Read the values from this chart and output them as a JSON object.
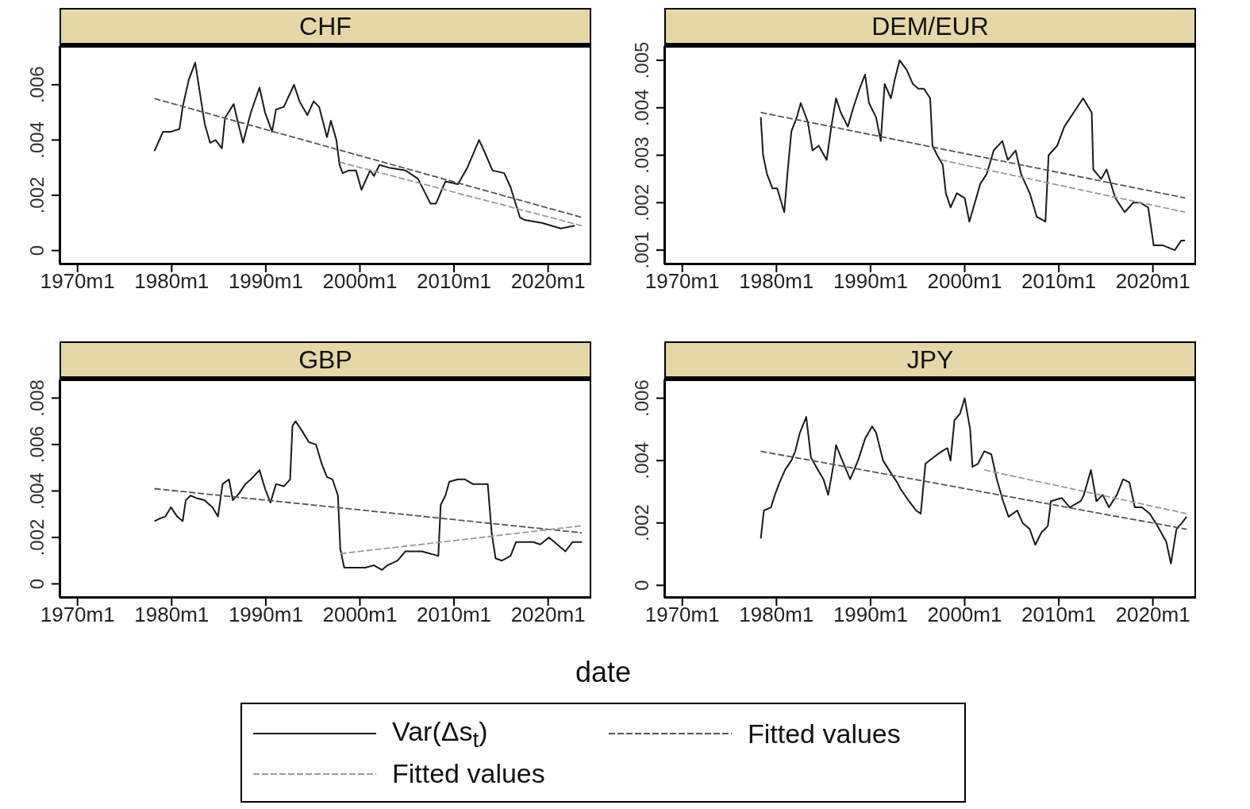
{
  "chart_data": [
    {
      "type": "line",
      "title": "CHF",
      "legend": "bottom",
      "marker": "none",
      "xlim": [
        "1968-02",
        "2024-08"
      ],
      "ylim": [
        -0.0005,
        0.0074
      ],
      "xticks": [
        {
          "value": "1970-01",
          "label": "1970m1"
        },
        {
          "value": "1980-01",
          "label": "1980m1"
        },
        {
          "value": "1990-01",
          "label": "1990m1"
        },
        {
          "value": "2000-01",
          "label": "2000m1"
        },
        {
          "value": "2010-01",
          "label": "2010m1"
        },
        {
          "value": "2020-01",
          "label": "2020m1"
        }
      ],
      "yticks": [
        {
          "value": 0,
          "label": "0"
        },
        {
          "value": 0.002,
          "label": ".002"
        },
        {
          "value": 0.004,
          "label": ".004"
        },
        {
          "value": 0.006,
          "label": ".006"
        }
      ],
      "series": [
        {
          "name": "Var(Δs$_{t}$)",
          "color": "#1a1a1a",
          "line_style": "solid",
          "x": [
            "1978-03",
            "1979-02",
            "1979-12",
            "1980-11",
            "1981-03",
            "1981-11",
            "1982-07",
            "1983-01",
            "1983-07",
            "1984-02",
            "1984-09",
            "1985-05",
            "1985-09",
            "1986-08",
            "1987-01",
            "1987-08",
            "1988-06",
            "1989-05",
            "1989-12",
            "1990-09",
            "1991-02",
            "1991-12",
            "1993-01",
            "1993-08",
            "1994-06",
            "1995-02",
            "1995-09",
            "1996-07",
            "1996-12",
            "1997-07",
            "1997-11",
            "1998-03",
            "1998-11",
            "1999-08",
            "2000-03",
            "2001-02",
            "2001-07",
            "2002-02",
            "2003-02",
            "2004-11",
            "2006-03",
            "2007-07",
            "2008-02",
            "2009-02",
            "2010-06",
            "2011-06",
            "2012-09",
            "2013-05",
            "2014-02",
            "2015-05",
            "2016-01",
            "2017-01",
            "2017-08",
            "2019-05",
            "2021-05",
            "2022-11"
          ],
          "values": [
            0.0036,
            0.0043,
            0.0043,
            0.0044,
            0.0052,
            0.0062,
            0.0068,
            0.0057,
            0.0046,
            0.0039,
            0.004,
            0.0037,
            0.0048,
            0.0053,
            0.0047,
            0.0039,
            0.005,
            0.0059,
            0.005,
            0.0043,
            0.0051,
            0.0052,
            0.006,
            0.0054,
            0.0049,
            0.0054,
            0.0052,
            0.0041,
            0.0047,
            0.004,
            0.0031,
            0.0028,
            0.0029,
            0.0029,
            0.0022,
            0.0029,
            0.0027,
            0.0031,
            0.003,
            0.0029,
            0.0026,
            0.0017,
            0.0017,
            0.0025,
            0.0024,
            0.003,
            0.004,
            0.0035,
            0.0029,
            0.0028,
            0.0023,
            0.0012,
            0.0011,
            0.001,
            0.0008,
            0.0009
          ]
        },
        {
          "name": "Fitted values",
          "color": "#555555",
          "line_style": "dashed",
          "x": [
            "1978-03",
            "2023-08"
          ],
          "values": [
            0.0055,
            0.0012
          ]
        },
        {
          "name": "Fitted values",
          "color": "#9a9a9a",
          "line_style": "dashed",
          "x": [
            "1997-11",
            "2023-08"
          ],
          "values": [
            0.0032,
            0.0009
          ]
        }
      ]
    },
    {
      "type": "line",
      "title": "DEM/EUR",
      "marker": "none",
      "xlim": [
        "1968-02",
        "2024-08"
      ],
      "ylim": [
        0.0007,
        0.0053
      ],
      "xticks": [
        {
          "value": "1970-01",
          "label": "1970m1"
        },
        {
          "value": "1980-01",
          "label": "1980m1"
        },
        {
          "value": "1990-01",
          "label": "1990m1"
        },
        {
          "value": "2000-01",
          "label": "2000m1"
        },
        {
          "value": "2010-01",
          "label": "2010m1"
        },
        {
          "value": "2020-01",
          "label": "2020m1"
        }
      ],
      "yticks": [
        {
          "value": 0.001,
          "label": ".001"
        },
        {
          "value": 0.002,
          "label": ".002"
        },
        {
          "value": 0.003,
          "label": ".003"
        },
        {
          "value": 0.004,
          "label": ".004"
        },
        {
          "value": 0.005,
          "label": ".005"
        }
      ],
      "series": [
        {
          "color": "#1a1a1a",
          "line_style": "solid",
          "x": [
            "1978-05",
            "1978-08",
            "1979-01",
            "1979-08",
            "1980-02",
            "1980-11",
            "1981-03",
            "1981-08",
            "1982-03",
            "1982-08",
            "1983-05",
            "1983-11",
            "1984-07",
            "1985-05",
            "1985-11",
            "1986-05",
            "1986-11",
            "1987-08",
            "1988-03",
            "1988-11",
            "1989-06",
            "1989-11",
            "1990-08",
            "1991-02",
            "1991-07",
            "1992-03",
            "1992-08",
            "1993-02",
            "1993-11",
            "1994-07",
            "1995-02",
            "1995-09",
            "1996-05",
            "1996-08",
            "1997-02",
            "1997-09",
            "1998-01",
            "1998-07",
            "1999-03",
            "2000-01",
            "2000-07",
            "2001-02",
            "2001-09",
            "2002-05",
            "2003-02",
            "2004-01",
            "2004-08",
            "2005-06",
            "2006-01",
            "2006-12",
            "2007-09",
            "2008-08",
            "2008-12",
            "2009-11",
            "2010-08",
            "2011-08",
            "2012-08",
            "2013-07",
            "2013-09",
            "2014-07",
            "2015-02",
            "2016-01",
            "2017-01",
            "2017-12",
            "2018-09",
            "2019-07",
            "2020-02",
            "2021-02",
            "2022-05",
            "2023-01",
            "2023-06"
          ],
          "values": [
            0.0038,
            0.003,
            0.0026,
            0.0023,
            0.0023,
            0.0018,
            0.0026,
            0.0035,
            0.0038,
            0.0041,
            0.0037,
            0.0031,
            0.0032,
            0.0029,
            0.0036,
            0.0042,
            0.0039,
            0.0036,
            0.004,
            0.0044,
            0.0047,
            0.0041,
            0.0038,
            0.0033,
            0.0045,
            0.0042,
            0.0046,
            0.005,
            0.0048,
            0.0045,
            0.0044,
            0.0044,
            0.0042,
            0.0032,
            0.003,
            0.0028,
            0.0022,
            0.0019,
            0.0022,
            0.0021,
            0.0016,
            0.002,
            0.0024,
            0.0026,
            0.0031,
            0.0033,
            0.0029,
            0.0031,
            0.0026,
            0.0022,
            0.0017,
            0.0016,
            0.003,
            0.0032,
            0.0036,
            0.0039,
            0.0042,
            0.0039,
            0.0027,
            0.0025,
            0.0027,
            0.0021,
            0.0018,
            0.002,
            0.002,
            0.0019,
            0.0011,
            0.0011,
            0.001,
            0.0012,
            0.0012
          ]
        },
        {
          "color": "#555555",
          "line_style": "dashed",
          "x": [
            "1978-05",
            "2023-06"
          ],
          "values": [
            0.0039,
            0.0021
          ]
        },
        {
          "color": "#9a9a9a",
          "line_style": "dashed",
          "x": [
            "1997-07",
            "2023-06"
          ],
          "values": [
            0.0029,
            0.0018
          ]
        }
      ]
    },
    {
      "type": "line",
      "title": "GBP",
      "xlabel": "date",
      "marker": "none",
      "xlim": [
        "1968-02",
        "2024-08"
      ],
      "ylim": [
        -0.0006,
        0.0088
      ],
      "xticks": [
        {
          "value": "1970-01",
          "label": "1970m1"
        },
        {
          "value": "1980-01",
          "label": "1980m1"
        },
        {
          "value": "1990-01",
          "label": "1990m1"
        },
        {
          "value": "2000-01",
          "label": "2000m1"
        },
        {
          "value": "2010-01",
          "label": "2010m1"
        },
        {
          "value": "2020-01",
          "label": "2020m1"
        }
      ],
      "yticks": [
        {
          "value": 0,
          "label": "0"
        },
        {
          "value": 0.002,
          "label": ".002"
        },
        {
          "value": 0.004,
          "label": ".004"
        },
        {
          "value": 0.006,
          "label": ".006"
        },
        {
          "value": 0.008,
          "label": ".008"
        }
      ],
      "series": [
        {
          "color": "#1a1a1a",
          "line_style": "solid",
          "x": [
            "1978-03",
            "1978-09",
            "1979-05",
            "1979-12",
            "1980-08",
            "1981-03",
            "1981-07",
            "1982-01",
            "1982-08",
            "1983-07",
            "1984-05",
            "1984-12",
            "1985-06",
            "1986-02",
            "1986-07",
            "1987-03",
            "1987-11",
            "1988-06",
            "1989-05",
            "1989-12",
            "1990-07",
            "1991-02",
            "1991-12",
            "1992-08",
            "1992-11",
            "1993-03",
            "1993-11",
            "1994-08",
            "1995-05",
            "1995-12",
            "1996-07",
            "1997-02",
            "1997-09",
            "1997-12",
            "1998-05",
            "1999-06",
            "2000-08",
            "2001-07",
            "2002-05",
            "2002-12",
            "2004-01",
            "2004-11",
            "2005-11",
            "2006-08",
            "2007-07",
            "2008-05",
            "2008-08",
            "2009-02",
            "2009-07",
            "2010-06",
            "2011-03",
            "2012-01",
            "2012-12",
            "2013-08",
            "2014-01",
            "2014-06",
            "2015-02",
            "2016-01",
            "2016-08",
            "2017-06",
            "2018-06",
            "2019-03",
            "2020-02",
            "2020-09",
            "2021-11",
            "2022-08",
            "2023-08"
          ],
          "values": [
            0.0027,
            0.0028,
            0.0029,
            0.0033,
            0.0029,
            0.0027,
            0.0036,
            0.0038,
            0.0037,
            0.0036,
            0.0033,
            0.0029,
            0.0043,
            0.0045,
            0.0036,
            0.0039,
            0.0043,
            0.0045,
            0.0049,
            0.0041,
            0.0035,
            0.0043,
            0.0042,
            0.0045,
            0.0068,
            0.007,
            0.0066,
            0.0061,
            0.006,
            0.0052,
            0.0046,
            0.0045,
            0.0038,
            0.0015,
            0.0007,
            0.0007,
            0.0007,
            0.0008,
            0.0006,
            0.0008,
            0.001,
            0.0014,
            0.0014,
            0.0014,
            0.0013,
            0.0012,
            0.0034,
            0.0038,
            0.0044,
            0.0045,
            0.0045,
            0.0043,
            0.0043,
            0.0043,
            0.0022,
            0.0011,
            0.001,
            0.0012,
            0.0018,
            0.0018,
            0.0018,
            0.0017,
            0.002,
            0.0018,
            0.0014,
            0.0018,
            0.0018
          ]
        },
        {
          "color": "#555555",
          "line_style": "dashed",
          "x": [
            "1978-03",
            "2023-08"
          ],
          "values": [
            0.0041,
            0.0022
          ]
        },
        {
          "color": "#9a9a9a",
          "line_style": "dashed",
          "x": [
            "1997-12",
            "2023-08"
          ],
          "values": [
            0.0013,
            0.0025
          ]
        }
      ]
    },
    {
      "type": "line",
      "title": "JPY",
      "marker": "none",
      "xlim": [
        "1968-02",
        "2024-08"
      ],
      "ylim": [
        -0.0004,
        0.0066
      ],
      "xticks": [
        {
          "value": "1970-01",
          "label": "1970m1"
        },
        {
          "value": "1980-01",
          "label": "1980m1"
        },
        {
          "value": "1990-01",
          "label": "1990m1"
        },
        {
          "value": "2000-01",
          "label": "2000m1"
        },
        {
          "value": "2010-01",
          "label": "2010m1"
        },
        {
          "value": "2020-01",
          "label": "2020m1"
        }
      ],
      "yticks": [
        {
          "value": 0,
          "label": "0"
        },
        {
          "value": 0.002,
          "label": ".002"
        },
        {
          "value": 0.004,
          "label": ".004"
        },
        {
          "value": 0.006,
          "label": ".006"
        }
      ],
      "series": [
        {
          "color": "#1a1a1a",
          "line_style": "solid",
          "x": [
            "1978-05",
            "1978-09",
            "1979-06",
            "1979-11",
            "1980-05",
            "1980-12",
            "1981-08",
            "1982-01",
            "1982-07",
            "1983-03",
            "1983-09",
            "1984-06",
            "1985-01",
            "1985-07",
            "1986-02",
            "1986-05",
            "1987-01",
            "1987-11",
            "1988-09",
            "1989-06",
            "1990-03",
            "1990-08",
            "1991-05",
            "1992-03",
            "1992-11",
            "1993-03",
            "1994-02",
            "1994-11",
            "1995-05",
            "1995-11",
            "1996-09",
            "1997-08",
            "1998-03",
            "1998-07",
            "1998-12",
            "1999-07",
            "2000-01",
            "2000-08",
            "2000-11",
            "2001-06",
            "2002-02",
            "2002-11",
            "2003-06",
            "2004-02",
            "2004-09",
            "2005-08",
            "2006-03",
            "2006-12",
            "2007-07",
            "2008-03",
            "2008-11",
            "2009-03",
            "2010-05",
            "2011-03",
            "2012-05",
            "2012-09",
            "2013-06",
            "2014-01",
            "2014-09",
            "2015-05",
            "2016-03",
            "2016-11",
            "2017-07",
            "2018-02",
            "2018-11",
            "2019-09",
            "2020-07",
            "2021-06",
            "2021-12",
            "2022-07",
            "2023-02",
            "2023-08"
          ],
          "values": [
            0.0015,
            0.0024,
            0.0025,
            0.0029,
            0.0033,
            0.0037,
            0.004,
            0.0043,
            0.0049,
            0.0054,
            0.0041,
            0.0037,
            0.0034,
            0.0029,
            0.0039,
            0.0045,
            0.004,
            0.0034,
            0.004,
            0.0047,
            0.0051,
            0.0049,
            0.004,
            0.0036,
            0.0033,
            0.0031,
            0.0027,
            0.0024,
            0.0023,
            0.0039,
            0.0041,
            0.0043,
            0.0044,
            0.004,
            0.0053,
            0.0055,
            0.006,
            0.005,
            0.0038,
            0.0039,
            0.0043,
            0.0042,
            0.0034,
            0.0027,
            0.0022,
            0.0024,
            0.002,
            0.0018,
            0.0013,
            0.0017,
            0.0019,
            0.0027,
            0.0028,
            0.0025,
            0.0027,
            0.0029,
            0.0037,
            0.0027,
            0.0029,
            0.0025,
            0.0029,
            0.0034,
            0.0033,
            0.0025,
            0.0025,
            0.0023,
            0.0019,
            0.0014,
            0.0007,
            0.0018,
            0.002,
            0.0022
          ]
        },
        {
          "color": "#555555",
          "line_style": "dashed",
          "x": [
            "1978-05",
            "2023-08"
          ],
          "values": [
            0.0043,
            0.0018
          ]
        },
        {
          "color": "#9a9a9a",
          "line_style": "dashed",
          "x": [
            "2002-02",
            "2023-08"
          ],
          "values": [
            0.0037,
            0.0023
          ]
        }
      ]
    }
  ]
}
